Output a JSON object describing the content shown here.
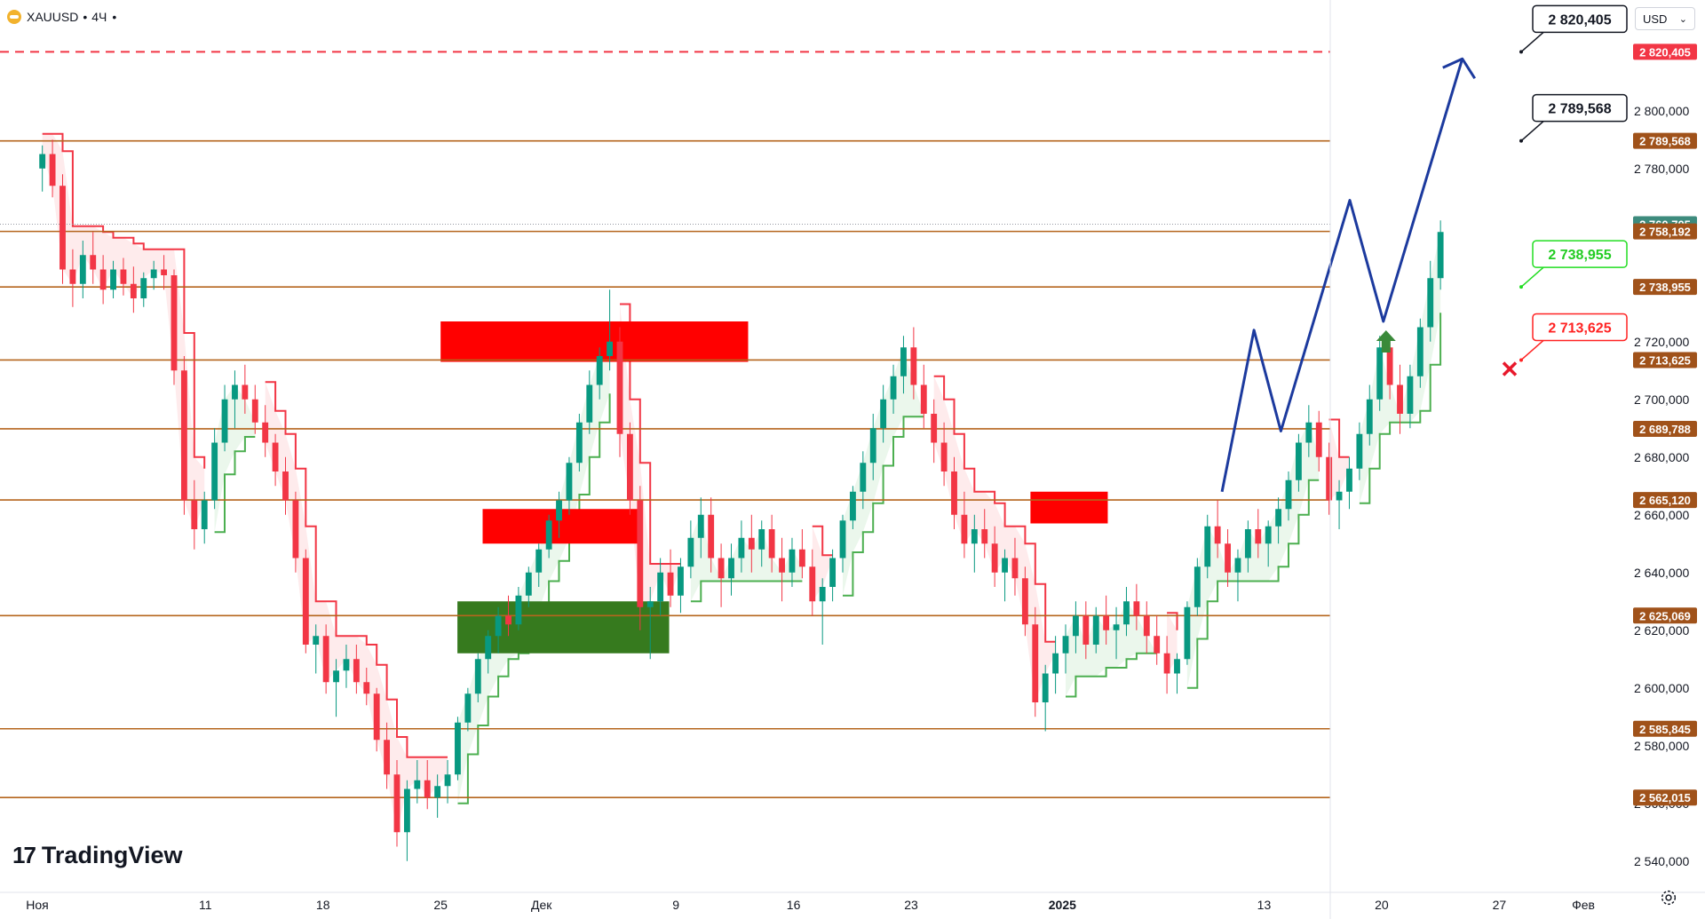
{
  "header": {
    "symbol": "XAUUSD",
    "sep": "•",
    "interval": "4Ч",
    "dot": "•"
  },
  "currency": {
    "label": "USD",
    "arrow": "⌄"
  },
  "branding": {
    "mark": "17",
    "name": "TradingView"
  },
  "icons": {
    "settings": "gear-icon",
    "symbol_logo": "gold-icon",
    "up_arrow": "up-arrow-icon",
    "cross": "close-icon"
  },
  "colors": {
    "bull": "#089981",
    "bear": "#f23645",
    "level": "#b5651d",
    "forecast": "#1c3a9e",
    "zone_red": "#ff0000",
    "zone_green": "#367a1e",
    "trail_red": "#f23645",
    "trail_green": "#4caf50"
  },
  "chart_data": {
    "type": "candlestick",
    "timeframe": "4H",
    "y_axis": {
      "min": 2535,
      "max": 2835,
      "ticks": [
        2540,
        2560,
        2580,
        2600,
        2620,
        2640,
        2660,
        2680,
        2700,
        2720,
        2740,
        2760,
        2780,
        2800
      ]
    },
    "y_tick_labels": [
      "2 540,000",
      "2 560,000",
      "2 580,000",
      "2 600,000",
      "2 620,000",
      "2 640,000",
      "2 660,000",
      "2 680,000",
      "2 700,000",
      "2 720,000",
      "2 740,000",
      "2 760,000",
      "2 780,000",
      "2 800,000"
    ],
    "x_axis": {
      "range_days": [
        0,
        92
      ],
      "labels": [
        {
          "text": "Ноя",
          "day": 0
        },
        {
          "text": "11",
          "day": 10
        },
        {
          "text": "18",
          "day": 17
        },
        {
          "text": "25",
          "day": 24
        },
        {
          "text": "Дек",
          "day": 30
        },
        {
          "text": "9",
          "day": 38
        },
        {
          "text": "16",
          "day": 45
        },
        {
          "text": "23",
          "day": 52
        },
        {
          "text": "2025",
          "day": 61
        },
        {
          "text": "13",
          "day": 73
        },
        {
          "text": "20",
          "day": 80
        },
        {
          "text": "27",
          "day": 87
        },
        {
          "text": "Фев",
          "day": 92
        }
      ]
    },
    "last_price": {
      "value": 2760.705,
      "label": "2 760,705"
    },
    "levels": [
      {
        "value": 2789.568,
        "label": "2 789,568"
      },
      {
        "value": 2758.192,
        "label": "2 758,192"
      },
      {
        "value": 2738.955,
        "label": "2 738,955"
      },
      {
        "value": 2713.625,
        "label": "2 713,625"
      },
      {
        "value": 2689.788,
        "label": "2 689,788"
      },
      {
        "value": 2665.12,
        "label": "2 665,120"
      },
      {
        "value": 2625.069,
        "label": "2 625,069"
      },
      {
        "value": 2585.845,
        "label": "2 585,845"
      },
      {
        "value": 2562.015,
        "label": "2 562,015"
      }
    ],
    "target_level": {
      "value": 2820.405,
      "label": "2 820,405"
    },
    "callouts": [
      {
        "text": "2 820,405",
        "value": 2820.405,
        "kind": "target"
      },
      {
        "text": "2 789,568",
        "value": 2789.568,
        "kind": "target"
      },
      {
        "text": "2 738,955",
        "value": 2738.955,
        "kind": "entry"
      },
      {
        "text": "2 713,625",
        "value": 2713.625,
        "kind": "stop"
      }
    ],
    "zones": [
      {
        "color": "red",
        "from_day": 24.0,
        "to_day": 42.3,
        "low": 2713,
        "high": 2727
      },
      {
        "color": "red",
        "from_day": 26.5,
        "to_day": 35.8,
        "low": 2650,
        "high": 2662
      },
      {
        "color": "green",
        "from_day": 25.0,
        "to_day": 37.6,
        "low": 2612,
        "high": 2630
      },
      {
        "color": "red",
        "from_day": 59.1,
        "to_day": 63.7,
        "low": 2657,
        "high": 2668
      }
    ],
    "forecast_path": [
      {
        "day": 70.5,
        "price": 2668
      },
      {
        "day": 72.4,
        "price": 2724
      },
      {
        "day": 74.0,
        "price": 2689
      },
      {
        "day": 78.1,
        "price": 2769
      },
      {
        "day": 80.1,
        "price": 2727
      },
      {
        "day": 84.8,
        "price": 2818
      }
    ],
    "candles": [
      [
        2780,
        2788,
        2772,
        2785
      ],
      [
        2785,
        2790,
        2770,
        2774
      ],
      [
        2774,
        2778,
        2740,
        2745
      ],
      [
        2745,
        2752,
        2732,
        2740
      ],
      [
        2740,
        2755,
        2735,
        2750
      ],
      [
        2750,
        2758,
        2740,
        2745
      ],
      [
        2745,
        2750,
        2733,
        2738
      ],
      [
        2738,
        2748,
        2735,
        2745
      ],
      [
        2745,
        2749,
        2736,
        2740
      ],
      [
        2740,
        2746,
        2730,
        2735
      ],
      [
        2735,
        2744,
        2732,
        2742
      ],
      [
        2742,
        2748,
        2738,
        2745
      ],
      [
        2745,
        2750,
        2738,
        2743
      ],
      [
        2743,
        2745,
        2705,
        2710
      ],
      [
        2710,
        2715,
        2660,
        2665
      ],
      [
        2665,
        2672,
        2648,
        2655
      ],
      [
        2655,
        2668,
        2650,
        2665
      ],
      [
        2665,
        2690,
        2662,
        2685
      ],
      [
        2685,
        2705,
        2682,
        2700
      ],
      [
        2700,
        2710,
        2690,
        2705
      ],
      [
        2705,
        2712,
        2695,
        2700
      ],
      [
        2700,
        2705,
        2688,
        2692
      ],
      [
        2692,
        2698,
        2680,
        2685
      ],
      [
        2685,
        2688,
        2670,
        2675
      ],
      [
        2675,
        2680,
        2660,
        2665
      ],
      [
        2665,
        2668,
        2640,
        2645
      ],
      [
        2645,
        2648,
        2612,
        2615
      ],
      [
        2615,
        2622,
        2605,
        2618
      ],
      [
        2618,
        2622,
        2598,
        2602
      ],
      [
        2602,
        2610,
        2590,
        2606
      ],
      [
        2606,
        2615,
        2600,
        2610
      ],
      [
        2610,
        2615,
        2598,
        2602
      ],
      [
        2602,
        2607,
        2594,
        2598
      ],
      [
        2598,
        2600,
        2578,
        2582
      ],
      [
        2582,
        2588,
        2565,
        2570
      ],
      [
        2570,
        2575,
        2545,
        2550
      ],
      [
        2550,
        2568,
        2540,
        2565
      ],
      [
        2565,
        2575,
        2560,
        2568
      ],
      [
        2568,
        2575,
        2558,
        2562
      ],
      [
        2562,
        2570,
        2555,
        2566
      ],
      [
        2566,
        2575,
        2560,
        2570
      ],
      [
        2570,
        2590,
        2568,
        2588
      ],
      [
        2588,
        2600,
        2585,
        2598
      ],
      [
        2598,
        2612,
        2595,
        2610
      ],
      [
        2610,
        2620,
        2605,
        2618
      ],
      [
        2618,
        2628,
        2612,
        2625
      ],
      [
        2625,
        2632,
        2618,
        2622
      ],
      [
        2622,
        2635,
        2620,
        2632
      ],
      [
        2632,
        2642,
        2628,
        2640
      ],
      [
        2640,
        2650,
        2635,
        2648
      ],
      [
        2648,
        2660,
        2645,
        2658
      ],
      [
        2658,
        2668,
        2652,
        2665
      ],
      [
        2665,
        2680,
        2660,
        2678
      ],
      [
        2678,
        2695,
        2675,
        2692
      ],
      [
        2692,
        2710,
        2688,
        2705
      ],
      [
        2705,
        2718,
        2700,
        2715
      ],
      [
        2715,
        2738,
        2710,
        2720
      ],
      [
        2720,
        2725,
        2680,
        2688
      ],
      [
        2688,
        2692,
        2660,
        2665
      ],
      [
        2665,
        2670,
        2620,
        2628
      ],
      [
        2628,
        2635,
        2610,
        2630
      ],
      [
        2630,
        2645,
        2625,
        2640
      ],
      [
        2640,
        2648,
        2628,
        2632
      ],
      [
        2632,
        2645,
        2626,
        2642
      ],
      [
        2642,
        2658,
        2638,
        2652
      ],
      [
        2652,
        2666,
        2645,
        2660
      ],
      [
        2660,
        2666,
        2640,
        2645
      ],
      [
        2645,
        2650,
        2628,
        2638
      ],
      [
        2638,
        2650,
        2632,
        2645
      ],
      [
        2645,
        2658,
        2640,
        2652
      ],
      [
        2652,
        2660,
        2640,
        2648
      ],
      [
        2648,
        2658,
        2642,
        2655
      ],
      [
        2655,
        2660,
        2640,
        2645
      ],
      [
        2645,
        2652,
        2630,
        2640
      ],
      [
        2640,
        2652,
        2635,
        2648
      ],
      [
        2648,
        2655,
        2638,
        2642
      ],
      [
        2642,
        2648,
        2625,
        2630
      ],
      [
        2630,
        2638,
        2615,
        2635
      ],
      [
        2635,
        2648,
        2630,
        2645
      ],
      [
        2645,
        2660,
        2640,
        2658
      ],
      [
        2658,
        2670,
        2655,
        2668
      ],
      [
        2668,
        2682,
        2662,
        2678
      ],
      [
        2678,
        2695,
        2672,
        2690
      ],
      [
        2690,
        2705,
        2685,
        2700
      ],
      [
        2700,
        2712,
        2695,
        2708
      ],
      [
        2708,
        2722,
        2702,
        2718
      ],
      [
        2718,
        2725,
        2700,
        2705
      ],
      [
        2705,
        2712,
        2690,
        2695
      ],
      [
        2695,
        2700,
        2678,
        2685
      ],
      [
        2685,
        2692,
        2670,
        2675
      ],
      [
        2675,
        2680,
        2655,
        2660
      ],
      [
        2660,
        2668,
        2645,
        2650
      ],
      [
        2650,
        2660,
        2640,
        2655
      ],
      [
        2655,
        2662,
        2645,
        2650
      ],
      [
        2650,
        2656,
        2635,
        2640
      ],
      [
        2640,
        2648,
        2630,
        2645
      ],
      [
        2645,
        2652,
        2632,
        2638
      ],
      [
        2638,
        2642,
        2618,
        2622
      ],
      [
        2622,
        2628,
        2590,
        2595
      ],
      [
        2595,
        2608,
        2585,
        2605
      ],
      [
        2605,
        2618,
        2598,
        2612
      ],
      [
        2612,
        2622,
        2605,
        2618
      ],
      [
        2618,
        2630,
        2612,
        2625
      ],
      [
        2625,
        2630,
        2610,
        2615
      ],
      [
        2615,
        2628,
        2612,
        2625
      ],
      [
        2625,
        2632,
        2615,
        2620
      ],
      [
        2620,
        2628,
        2610,
        2622
      ],
      [
        2622,
        2635,
        2618,
        2630
      ],
      [
        2630,
        2636,
        2620,
        2625
      ],
      [
        2625,
        2630,
        2612,
        2618
      ],
      [
        2618,
        2625,
        2608,
        2612
      ],
      [
        2612,
        2618,
        2598,
        2605
      ],
      [
        2605,
        2612,
        2598,
        2610
      ],
      [
        2610,
        2630,
        2608,
        2628
      ],
      [
        2628,
        2645,
        2625,
        2642
      ],
      [
        2642,
        2660,
        2638,
        2656
      ],
      [
        2656,
        2665,
        2645,
        2650
      ],
      [
        2650,
        2655,
        2635,
        2640
      ],
      [
        2640,
        2648,
        2630,
        2645
      ],
      [
        2645,
        2658,
        2640,
        2655
      ],
      [
        2655,
        2662,
        2645,
        2650
      ],
      [
        2650,
        2658,
        2642,
        2656
      ],
      [
        2656,
        2666,
        2650,
        2662
      ],
      [
        2662,
        2675,
        2658,
        2672
      ],
      [
        2672,
        2688,
        2668,
        2685
      ],
      [
        2685,
        2698,
        2680,
        2692
      ],
      [
        2692,
        2696,
        2675,
        2680
      ],
      [
        2680,
        2685,
        2660,
        2665
      ],
      [
        2665,
        2672,
        2655,
        2668
      ],
      [
        2668,
        2680,
        2662,
        2676
      ],
      [
        2676,
        2692,
        2672,
        2688
      ],
      [
        2688,
        2705,
        2684,
        2700
      ],
      [
        2700,
        2722,
        2696,
        2718
      ],
      [
        2718,
        2722,
        2700,
        2705
      ],
      [
        2705,
        2712,
        2688,
        2695
      ],
      [
        2695,
        2712,
        2690,
        2708
      ],
      [
        2708,
        2728,
        2704,
        2725
      ],
      [
        2725,
        2748,
        2720,
        2742
      ],
      [
        2742,
        2762,
        2738,
        2758
      ]
    ]
  }
}
